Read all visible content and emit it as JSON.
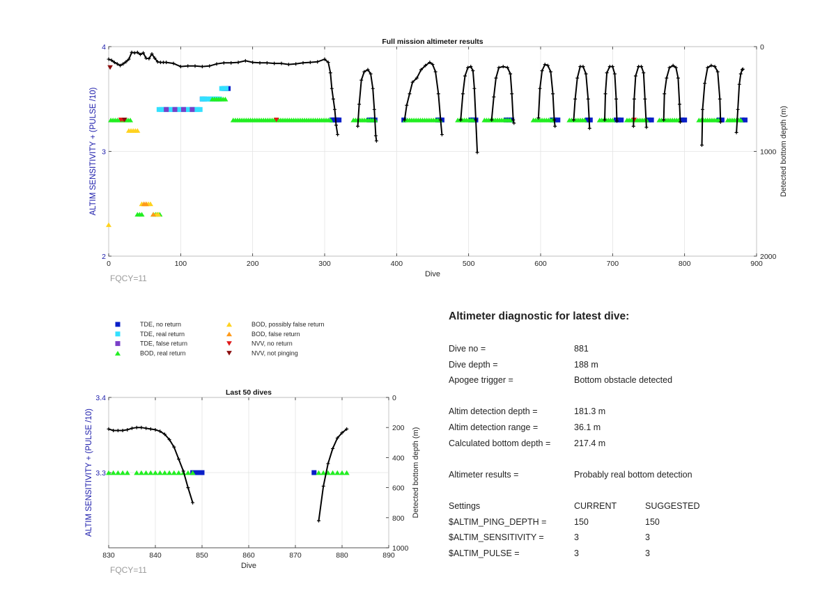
{
  "colors": {
    "tde_no_return": "#0a1fc8",
    "tde_real_return": "#33e0ff",
    "tde_false_return": "#7a3fc8",
    "bod_real_return": "#22ee22",
    "bod_possibly_false": "#ffd21f",
    "bod_false": "#ff9a1a",
    "nvv_no_return": "#e01a1a",
    "nvv_not_pinging": "#8b0e0e",
    "depth_line": "#000000",
    "left_axis_text": "#1a1aaa"
  },
  "legend": {
    "items": [
      {
        "label": "TDE, no return",
        "marker": "square",
        "color_key": "tde_no_return"
      },
      {
        "label": "TDE, real return",
        "marker": "square",
        "color_key": "tde_real_return"
      },
      {
        "label": "TDE, false return",
        "marker": "square",
        "color_key": "tde_false_return"
      },
      {
        "label": "BOD, real return",
        "marker": "triangle-up",
        "color_key": "bod_real_return"
      },
      {
        "label": "BOD, possibly false return",
        "marker": "triangle-up",
        "color_key": "bod_possibly_false"
      },
      {
        "label": "BOD, false return",
        "marker": "triangle-up",
        "color_key": "bod_false"
      },
      {
        "label": "NVV, no return",
        "marker": "triangle-down",
        "color_key": "nvv_no_return"
      },
      {
        "label": "NVV, not pinging",
        "marker": "triangle-down",
        "color_key": "nvv_not_pinging"
      }
    ]
  },
  "chart_data": [
    {
      "id": "full",
      "type": "scatter",
      "title": "Full mission altimeter results",
      "xlabel": "Dive",
      "ylabel": "ALTIM SENSITIVITY + (PULSE /10)",
      "y2label": "Detected bottom depth (m)",
      "xlim": [
        0,
        900
      ],
      "ylim": [
        2,
        4
      ],
      "y2lim": [
        2000,
        0
      ],
      "xticks": [
        0,
        100,
        200,
        300,
        400,
        500,
        600,
        700,
        800,
        900
      ],
      "yticks": [
        2,
        3,
        4
      ],
      "y2ticks": [
        0,
        1000,
        2000
      ],
      "grid": true,
      "footnote": "FQCY=11",
      "markers": [
        {
          "kind": "tde_no_return",
          "x": [
            310,
            312,
            314,
            316,
            318,
            320,
            362,
            366,
            370,
            410,
            457,
            460,
            463,
            503,
            506,
            510,
            552,
            556,
            560,
            616,
            620,
            624,
            665,
            669,
            705,
            708,
            712,
            750,
            754,
            796,
            800,
            848,
            852,
            880,
            884
          ],
          "y": [
            3.3,
            3.3,
            3.3,
            3.3,
            3.3,
            3.3,
            3.3,
            3.3,
            3.3,
            3.3,
            3.3,
            3.3,
            3.3,
            3.3,
            3.3,
            3.3,
            3.3,
            3.3,
            3.3,
            3.3,
            3.3,
            3.3,
            3.3,
            3.3,
            3.3,
            3.3,
            3.3,
            3.3,
            3.3,
            3.3,
            3.3,
            3.3,
            3.3,
            3.3,
            3.3
          ]
        },
        {
          "kind": "tde_no_return",
          "x": [
            130,
            133,
            160,
            163,
            166
          ],
          "y": [
            3.5,
            3.5,
            3.6,
            3.6,
            3.6
          ]
        },
        {
          "kind": "tde_real_return",
          "x": [
            70,
            73,
            76,
            79,
            82,
            85,
            88,
            91,
            94,
            97,
            100,
            103,
            106,
            109,
            112,
            115,
            118,
            121,
            124,
            127,
            130,
            133,
            136,
            139,
            142,
            145,
            148,
            151,
            154,
            157,
            160,
            163
          ],
          "y": [
            3.4,
            3.4,
            3.4,
            3.4,
            3.4,
            3.4,
            3.4,
            3.4,
            3.4,
            3.4,
            3.4,
            3.4,
            3.4,
            3.4,
            3.4,
            3.4,
            3.4,
            3.4,
            3.4,
            3.4,
            3.5,
            3.5,
            3.5,
            3.5,
            3.5,
            3.5,
            3.5,
            3.5,
            3.5,
            3.6,
            3.6,
            3.6
          ]
        },
        {
          "kind": "tde_false_return",
          "x": [
            80,
            92,
            104,
            116
          ],
          "y": [
            3.4,
            3.4,
            3.4,
            3.4
          ]
        },
        {
          "kind": "bod_real_return",
          "segments": [
            [
              3,
              30,
              3.3
            ],
            [
              40,
              48,
              2.4
            ],
            [
              62,
              72,
              2.4
            ],
            [
              144,
              162,
              3.5
            ],
            [
              173,
              308,
              3.3
            ],
            [
              340,
              372,
              3.3
            ],
            [
              412,
              462,
              3.3
            ],
            [
              485,
              508,
              3.3
            ],
            [
              522,
              560,
              3.3
            ],
            [
              590,
              618,
              3.3
            ],
            [
              640,
              662,
              3.3
            ],
            [
              682,
              700,
              3.3
            ],
            [
              720,
              748,
              3.3
            ],
            [
              765,
              792,
              3.3
            ],
            [
              820,
              847,
              3.3
            ],
            [
              860,
              880,
              3.3
            ]
          ],
          "step": 3
        },
        {
          "kind": "bod_possibly_false",
          "x": [
            0,
            28,
            31,
            34,
            37,
            40,
            46,
            49,
            52,
            55,
            58,
            66,
            69
          ],
          "y": [
            2.3,
            3.2,
            3.2,
            3.2,
            3.2,
            3.2,
            2.5,
            2.5,
            2.5,
            2.5,
            2.5,
            2.4,
            2.4
          ]
        },
        {
          "kind": "bod_false",
          "x": [
            49,
            52,
            62
          ],
          "y": [
            2.5,
            2.5,
            2.4
          ]
        },
        {
          "kind": "nvv_no_return",
          "x": [
            17,
            20,
            233,
            730
          ],
          "y": [
            3.3,
            3.3,
            3.3,
            3.3
          ]
        },
        {
          "kind": "nvv_not_pinging",
          "x": [
            2,
            22
          ],
          "y": [
            3.8,
            3.3
          ]
        }
      ],
      "depth_series": [
        {
          "x": [
            0,
            4,
            8,
            12,
            16,
            20,
            24,
            28,
            32,
            36,
            40,
            44,
            48,
            52,
            56,
            60,
            64,
            68,
            72,
            76,
            80,
            90,
            100,
            110,
            120,
            130,
            140,
            150,
            160,
            170,
            180,
            190,
            200,
            210,
            220,
            230,
            240,
            250,
            260,
            270,
            280,
            290,
            300,
            305,
            308,
            310,
            312,
            314,
            316,
            318
          ],
          "y": [
            120,
            130,
            150,
            165,
            180,
            165,
            145,
            120,
            55,
            60,
            55,
            75,
            60,
            110,
            115,
            70,
            110,
            145,
            150,
            150,
            150,
            160,
            190,
            185,
            185,
            190,
            185,
            165,
            155,
            155,
            150,
            135,
            150,
            155,
            155,
            160,
            160,
            170,
            165,
            155,
            150,
            145,
            120,
            150,
            250,
            400,
            500,
            600,
            750,
            840
          ]
        },
        {
          "x": [
            346,
            348,
            351,
            355,
            360,
            364,
            367,
            369,
            371,
            372
          ],
          "y": [
            760,
            550,
            320,
            240,
            220,
            260,
            400,
            600,
            850,
            900
          ]
        },
        {
          "x": [
            411,
            414,
            418,
            422,
            428,
            434,
            440,
            446,
            450,
            454,
            458,
            461,
            463
          ],
          "y": [
            700,
            560,
            450,
            340,
            300,
            220,
            180,
            150,
            170,
            240,
            450,
            700,
            840
          ]
        },
        {
          "x": [
            489,
            492,
            495,
            499,
            503,
            506,
            508,
            510,
            512
          ],
          "y": [
            700,
            450,
            280,
            200,
            190,
            230,
            400,
            700,
            1010
          ]
        },
        {
          "x": [
            532,
            535,
            538,
            542,
            548,
            554,
            558,
            560,
            562,
            563
          ],
          "y": [
            700,
            480,
            300,
            200,
            190,
            200,
            260,
            450,
            700,
            730
          ]
        },
        {
          "x": [
            597,
            599,
            602,
            606,
            610,
            614,
            617,
            619,
            620
          ],
          "y": [
            680,
            400,
            230,
            170,
            180,
            240,
            450,
            700,
            760
          ]
        },
        {
          "x": [
            646,
            648,
            651,
            655,
            659,
            663,
            666,
            668
          ],
          "y": [
            700,
            500,
            300,
            190,
            190,
            260,
            500,
            780
          ]
        },
        {
          "x": [
            689,
            690,
            692,
            696,
            700,
            703,
            705,
            706
          ],
          "y": [
            700,
            450,
            250,
            190,
            190,
            260,
            500,
            710
          ]
        },
        {
          "x": [
            729,
            730,
            732,
            736,
            740,
            743,
            745,
            747
          ],
          "y": [
            760,
            500,
            280,
            190,
            190,
            250,
            500,
            770
          ]
        },
        {
          "x": [
            771,
            772,
            775,
            779,
            784,
            788,
            791,
            793,
            794
          ],
          "y": [
            700,
            450,
            300,
            200,
            180,
            200,
            300,
            550,
            720
          ]
        },
        {
          "x": [
            824,
            825,
            828,
            832,
            837,
            842,
            846,
            849,
            850
          ],
          "y": [
            940,
            600,
            350,
            200,
            180,
            190,
            240,
            500,
            720
          ]
        },
        {
          "x": [
            872,
            874,
            876,
            878,
            880,
            881
          ],
          "y": [
            820,
            600,
            360,
            260,
            220,
            215
          ]
        }
      ]
    },
    {
      "id": "last50",
      "type": "scatter",
      "title": "Last 50 dives",
      "xlabel": "Dive",
      "ylabel": "ALTIM SENSITIVITY + (PULSE /10)",
      "y2label": "Detected bottom depth (m)",
      "xlim": [
        830,
        890
      ],
      "ylim": [
        3.2,
        3.4
      ],
      "y2lim": [
        1000,
        0
      ],
      "xticks": [
        830,
        840,
        850,
        860,
        870,
        880,
        890
      ],
      "yticks": [
        3.3,
        3.4
      ],
      "y2ticks": [
        0,
        200,
        400,
        600,
        800,
        1000
      ],
      "grid": true,
      "footnote": "FQCY=11",
      "markers": [
        {
          "kind": "tde_no_return",
          "x": [
            848,
            849,
            850,
            874
          ],
          "y": [
            3.3,
            3.3,
            3.3,
            3.3
          ]
        },
        {
          "kind": "bod_real_return",
          "x": [
            830,
            831,
            832,
            833,
            834,
            836,
            837,
            838,
            839,
            840,
            841,
            842,
            843,
            844,
            845,
            846,
            847,
            848,
            875,
            876,
            877,
            878,
            879,
            880,
            881
          ],
          "y": [
            3.3,
            3.3,
            3.3,
            3.3,
            3.3,
            3.3,
            3.3,
            3.3,
            3.3,
            3.3,
            3.3,
            3.3,
            3.3,
            3.3,
            3.3,
            3.3,
            3.3,
            3.3,
            3.3,
            3.3,
            3.3,
            3.3,
            3.3,
            3.3,
            3.3
          ]
        }
      ],
      "depth_series": [
        {
          "x": [
            830,
            831,
            832,
            833,
            834,
            835,
            836,
            837,
            838,
            839,
            840,
            841,
            842,
            843,
            844,
            845,
            846,
            847,
            848
          ],
          "y": [
            210,
            220,
            220,
            220,
            215,
            205,
            200,
            200,
            205,
            210,
            215,
            225,
            245,
            280,
            330,
            410,
            490,
            600,
            700
          ]
        },
        {
          "x": [
            875,
            876,
            877,
            878,
            879,
            880,
            881
          ],
          "y": [
            820,
            590,
            440,
            340,
            270,
            235,
            210
          ]
        }
      ]
    }
  ],
  "diagnostic": {
    "title": "Altimeter diagnostic for latest dive:",
    "rows": [
      {
        "k": "Dive no =",
        "v": "881"
      },
      {
        "k": "Dive depth =",
        "v": "188 m"
      },
      {
        "k": "Apogee trigger =",
        "v": "Bottom obstacle detected"
      },
      {
        "k": "Altim detection depth =",
        "v": "181.3 m"
      },
      {
        "k": "Altim detection range =",
        "v": "36.1 m"
      },
      {
        "k": "Calculated bottom depth =",
        "v": "217.4 m"
      },
      {
        "k": "Altimeter results =",
        "v": "Probably real bottom detection"
      }
    ],
    "settings_header": {
      "k": "Settings",
      "current": "CURRENT",
      "suggested": "SUGGESTED"
    },
    "settings": [
      {
        "k": "$ALTIM_PING_DEPTH =",
        "current": "150",
        "suggested": "150"
      },
      {
        "k": "$ALTIM_SENSITIVITY =",
        "current": "3",
        "suggested": "3"
      },
      {
        "k": "$ALTIM_PULSE =",
        "current": "3",
        "suggested": "3"
      }
    ]
  }
}
